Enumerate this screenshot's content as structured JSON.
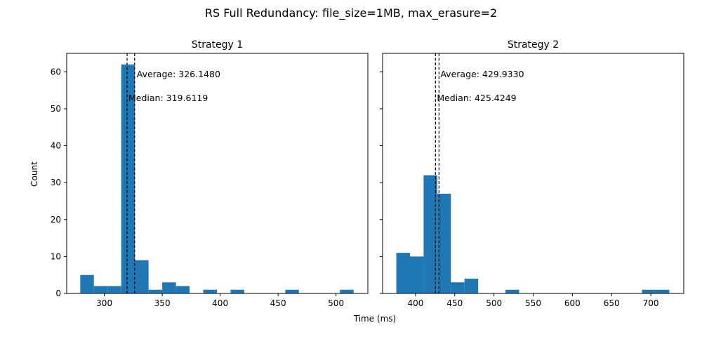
{
  "figure": {
    "suptitle": "RS Full Redundancy: file_size=1MB, max_erasure=2",
    "xlabel": "Time (ms)",
    "ylabel": "Count"
  },
  "colors": {
    "bar": "#1f77b4",
    "ref_line": "#000000"
  },
  "chart_data": [
    {
      "type": "bar",
      "title": "Strategy 1",
      "xlim": [
        267.5,
        527.5
      ],
      "ylim": [
        0,
        65
      ],
      "xticks": [
        300,
        350,
        400,
        450,
        500
      ],
      "yticks": [
        0,
        10,
        20,
        30,
        40,
        50,
        60
      ],
      "bin_width": 11.8,
      "bins": [
        {
          "start": 279.2,
          "count": 5
        },
        {
          "start": 291.0,
          "count": 2
        },
        {
          "start": 302.8,
          "count": 2
        },
        {
          "start": 314.6,
          "count": 62
        },
        {
          "start": 326.4,
          "count": 9
        },
        {
          "start": 338.2,
          "count": 1
        },
        {
          "start": 350.0,
          "count": 3
        },
        {
          "start": 361.8,
          "count": 2
        },
        {
          "start": 373.6,
          "count": 0
        },
        {
          "start": 385.4,
          "count": 1
        },
        {
          "start": 397.2,
          "count": 0
        },
        {
          "start": 409.0,
          "count": 1
        },
        {
          "start": 420.8,
          "count": 0
        },
        {
          "start": 432.6,
          "count": 0
        },
        {
          "start": 444.4,
          "count": 0
        },
        {
          "start": 456.2,
          "count": 1
        },
        {
          "start": 468.0,
          "count": 0
        },
        {
          "start": 479.8,
          "count": 0
        },
        {
          "start": 491.6,
          "count": 0
        },
        {
          "start": 503.4,
          "count": 1
        }
      ],
      "reference_lines": [
        {
          "label": "Average: 326.1480",
          "x": 326.148
        },
        {
          "label": "Median: 319.6119",
          "x": 319.6119
        }
      ]
    },
    {
      "type": "bar",
      "title": "Strategy 2",
      "xlim": [
        358.0,
        742.0
      ],
      "ylim": [
        0,
        65
      ],
      "xticks": [
        400,
        450,
        500,
        550,
        600,
        650,
        700
      ],
      "yticks": [
        0,
        10,
        20,
        30,
        40,
        50,
        60
      ],
      "bin_width": 17.4,
      "bins": [
        {
          "start": 375.5,
          "count": 11
        },
        {
          "start": 392.9,
          "count": 10
        },
        {
          "start": 410.3,
          "count": 32
        },
        {
          "start": 427.7,
          "count": 27
        },
        {
          "start": 445.1,
          "count": 3
        },
        {
          "start": 462.5,
          "count": 4
        },
        {
          "start": 479.9,
          "count": 0
        },
        {
          "start": 497.3,
          "count": 0
        },
        {
          "start": 514.7,
          "count": 1
        },
        {
          "start": 532.1,
          "count": 0
        },
        {
          "start": 549.5,
          "count": 0
        },
        {
          "start": 566.9,
          "count": 0
        },
        {
          "start": 584.3,
          "count": 0
        },
        {
          "start": 601.7,
          "count": 0
        },
        {
          "start": 619.1,
          "count": 0
        },
        {
          "start": 636.5,
          "count": 0
        },
        {
          "start": 653.9,
          "count": 0
        },
        {
          "start": 671.3,
          "count": 0
        },
        {
          "start": 688.7,
          "count": 1
        },
        {
          "start": 706.1,
          "count": 1
        }
      ],
      "reference_lines": [
        {
          "label": "Average: 429.9330",
          "x": 429.933
        },
        {
          "label": "Median: 425.4249",
          "x": 425.4249
        }
      ]
    }
  ]
}
